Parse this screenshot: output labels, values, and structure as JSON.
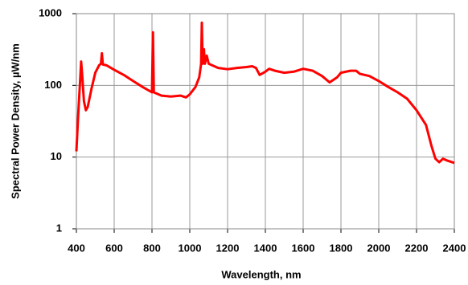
{
  "chart_data": {
    "type": "line",
    "x_label": "Wavelength, nm",
    "y_label": "Spectral Power Density, µW/nm",
    "x": [
      400,
      410,
      420,
      425,
      430,
      440,
      450,
      460,
      480,
      500,
      520,
      530,
      535,
      540,
      560,
      600,
      650,
      700,
      750,
      800,
      805,
      810,
      850,
      900,
      950,
      980,
      1000,
      1030,
      1050,
      1060,
      1064,
      1068,
      1075,
      1080,
      1090,
      1100,
      1150,
      1200,
      1250,
      1300,
      1330,
      1350,
      1370,
      1400,
      1420,
      1450,
      1500,
      1550,
      1600,
      1650,
      1700,
      1740,
      1780,
      1800,
      1850,
      1880,
      1900,
      1950,
      2000,
      2050,
      2100,
      2150,
      2200,
      2250,
      2280,
      2300,
      2320,
      2340,
      2360,
      2400
    ],
    "series": [
      {
        "color": "#ff0000",
        "values": [
          12,
          40,
          120,
          215,
          150,
          60,
          45,
          50,
          90,
          150,
          190,
          200,
          280,
          195,
          190,
          165,
          140,
          115,
          95,
          80,
          550,
          80,
          72,
          70,
          72,
          68,
          75,
          95,
          130,
          200,
          750,
          200,
          320,
          200,
          260,
          200,
          175,
          168,
          175,
          180,
          185,
          175,
          140,
          155,
          170,
          160,
          150,
          155,
          170,
          160,
          135,
          110,
          130,
          150,
          160,
          160,
          145,
          135,
          115,
          95,
          80,
          65,
          45,
          28,
          14,
          9.5,
          8.5,
          9.5,
          9,
          8.3
        ]
      }
    ],
    "xlim": [
      400,
      2400
    ],
    "xticks": [
      400,
      600,
      800,
      1000,
      1200,
      1400,
      1600,
      1800,
      2000,
      2200,
      2400
    ],
    "ylim": [
      1,
      1000
    ],
    "yticks": [
      1,
      10,
      100,
      1000
    ],
    "log_y": true,
    "grid": true
  }
}
